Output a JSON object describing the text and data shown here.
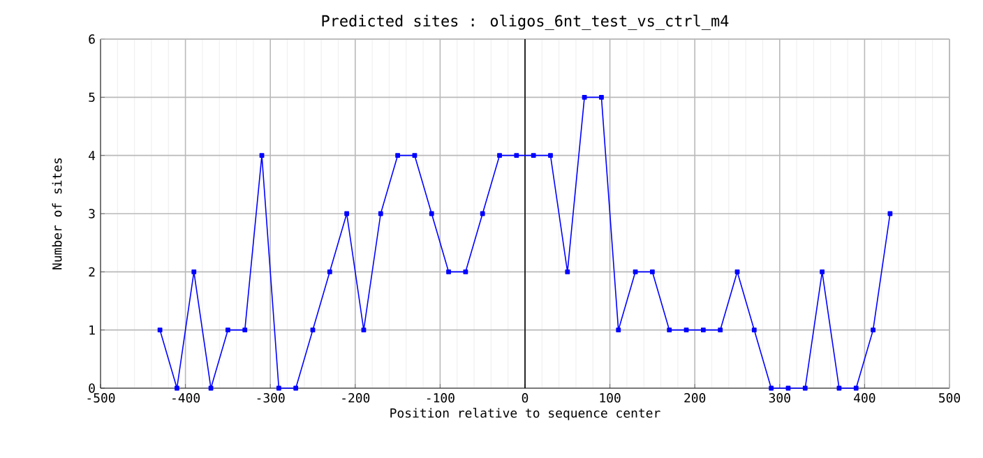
{
  "chart_data": {
    "type": "line",
    "title": "Predicted sites : oligos_6nt_test_vs_ctrl_m4",
    "xlabel": "Position relative to sequence center",
    "ylabel": "Number of sites",
    "x": [
      -430,
      -410,
      -390,
      -370,
      -350,
      -330,
      -310,
      -290,
      -270,
      -250,
      -230,
      -210,
      -190,
      -170,
      -150,
      -130,
      -110,
      -90,
      -70,
      -50,
      -30,
      -10,
      10,
      30,
      50,
      70,
      90,
      110,
      130,
      150,
      170,
      190,
      210,
      230,
      250,
      270,
      290,
      310,
      330,
      350,
      370,
      390,
      410,
      430
    ],
    "series": [
      {
        "color": "#0000ff",
        "values": [
          1,
          0,
          2,
          0,
          1,
          1,
          4,
          0,
          0,
          1,
          2,
          3,
          1,
          3,
          4,
          4,
          3,
          2,
          2,
          3,
          4,
          4,
          4,
          4,
          2,
          5,
          5,
          1,
          2,
          2,
          1,
          1,
          1,
          1,
          2,
          1,
          0,
          0,
          0,
          2,
          0,
          0,
          1,
          3
        ]
      }
    ],
    "xlim": [
      -500,
      500
    ],
    "xticks": [
      -500,
      -400,
      -300,
      -200,
      -100,
      0,
      100,
      200,
      300,
      400,
      500
    ],
    "ylim": [
      0,
      6
    ],
    "yticks": [
      0,
      1,
      2,
      3,
      4,
      5,
      6
    ],
    "ref_lines": [
      {
        "axis": "x",
        "value": 0,
        "color": "#000000"
      }
    ],
    "grid": true,
    "marker": "square",
    "line_style": "solid"
  }
}
